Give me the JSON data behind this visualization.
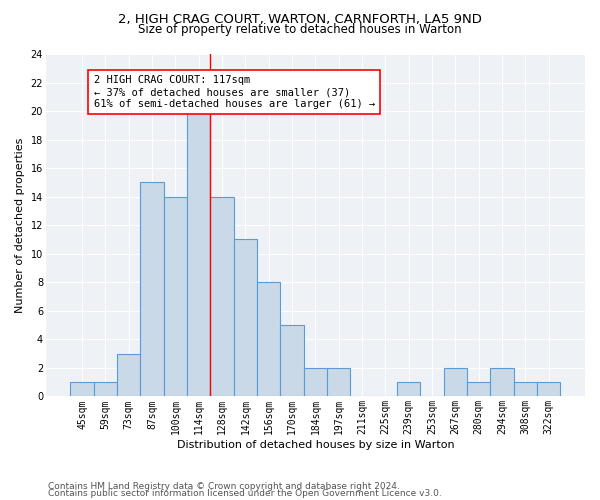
{
  "title1": "2, HIGH CRAG COURT, WARTON, CARNFORTH, LA5 9ND",
  "title2": "Size of property relative to detached houses in Warton",
  "xlabel": "Distribution of detached houses by size in Warton",
  "ylabel": "Number of detached properties",
  "bar_values": [
    1,
    1,
    3,
    15,
    14,
    20,
    14,
    11,
    8,
    5,
    2,
    2,
    0,
    0,
    1,
    0,
    2,
    1,
    2,
    1,
    1
  ],
  "bin_labels": [
    "45sqm",
    "59sqm",
    "73sqm",
    "87sqm",
    "100sqm",
    "114sqm",
    "128sqm",
    "142sqm",
    "156sqm",
    "170sqm",
    "184sqm",
    "197sqm",
    "211sqm",
    "225sqm",
    "239sqm",
    "253sqm",
    "267sqm",
    "280sqm",
    "294sqm",
    "308sqm",
    "322sqm"
  ],
  "bar_color": "#c9d9e8",
  "bar_edge_color": "#5b9bd5",
  "ref_line_x": 5.5,
  "ref_line_color": "red",
  "annotation_text": "2 HIGH CRAG COURT: 117sqm\n← 37% of detached houses are smaller (37)\n61% of semi-detached houses are larger (61) →",
  "annotation_box_color": "white",
  "annotation_box_edge_color": "red",
  "ylim": [
    0,
    24
  ],
  "yticks": [
    0,
    2,
    4,
    6,
    8,
    10,
    12,
    14,
    16,
    18,
    20,
    22,
    24
  ],
  "footer1": "Contains HM Land Registry data © Crown copyright and database right 2024.",
  "footer2": "Contains public sector information licensed under the Open Government Licence v3.0.",
  "title1_fontsize": 9.5,
  "title2_fontsize": 8.5,
  "xlabel_fontsize": 8,
  "ylabel_fontsize": 8,
  "tick_fontsize": 7,
  "annotation_fontsize": 7.5,
  "footer_fontsize": 6.5,
  "bg_color": "#eef2f7"
}
